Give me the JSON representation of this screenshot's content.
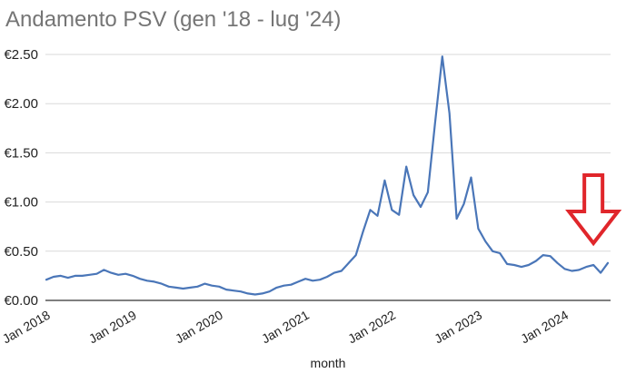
{
  "chart_data": {
    "type": "line",
    "title": "Andamento PSV (gen '18 - lug '24)",
    "xlabel": "month",
    "ylabel": "",
    "ylim": [
      0,
      2.5
    ],
    "yticks": [
      "€0.00",
      "€0.50",
      "€1.00",
      "€1.50",
      "€2.00",
      "€2.50"
    ],
    "ytick_values": [
      0,
      0.5,
      1.0,
      1.5,
      2.0,
      2.5
    ],
    "xticks": [
      "Jan 2018",
      "Jan 2019",
      "Jan 2020",
      "Jan 2021",
      "Jan 2022",
      "Jan 2023",
      "Jan 2024"
    ],
    "xtick_month_index": [
      0,
      12,
      24,
      36,
      48,
      60,
      72
    ],
    "grid": true,
    "legend": "none",
    "series": [
      {
        "name": "PSV",
        "color": "#4a76b8",
        "values": [
          0.21,
          0.24,
          0.25,
          0.23,
          0.25,
          0.25,
          0.26,
          0.27,
          0.31,
          0.28,
          0.26,
          0.27,
          0.25,
          0.22,
          0.2,
          0.19,
          0.17,
          0.14,
          0.13,
          0.12,
          0.13,
          0.14,
          0.17,
          0.15,
          0.14,
          0.11,
          0.1,
          0.09,
          0.07,
          0.06,
          0.07,
          0.09,
          0.13,
          0.15,
          0.16,
          0.19,
          0.22,
          0.2,
          0.21,
          0.24,
          0.28,
          0.3,
          0.38,
          0.46,
          0.7,
          0.92,
          0.86,
          1.22,
          0.92,
          0.87,
          1.36,
          1.07,
          0.95,
          1.1,
          1.8,
          2.48,
          1.9,
          0.83,
          0.98,
          1.25,
          0.73,
          0.6,
          0.5,
          0.48,
          0.37,
          0.36,
          0.34,
          0.36,
          0.4,
          0.46,
          0.45,
          0.38,
          0.32,
          0.3,
          0.31,
          0.34,
          0.36,
          0.28,
          0.38
        ]
      }
    ],
    "annotations": [
      {
        "type": "arrow",
        "direction": "down",
        "color": "#e0262b",
        "target_month_index": 76
      }
    ]
  }
}
